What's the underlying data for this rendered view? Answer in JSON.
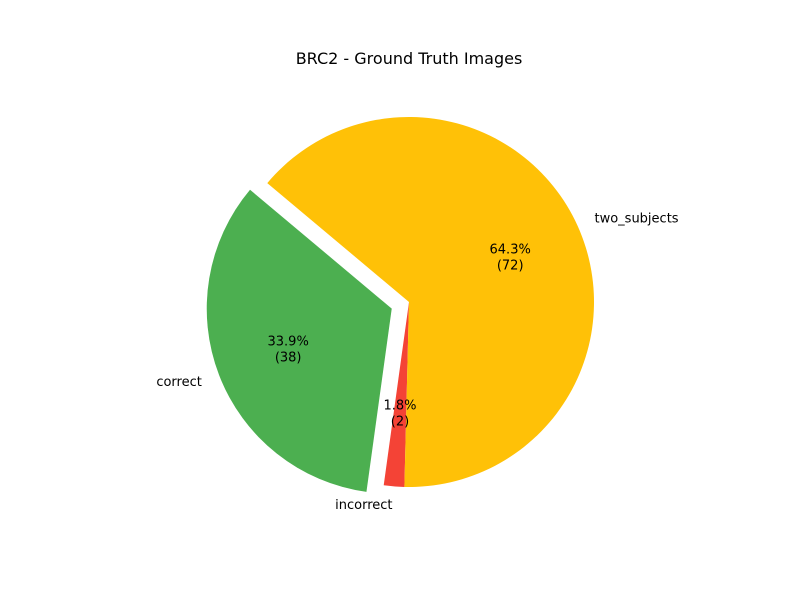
{
  "chart_data": {
    "type": "pie",
    "title": "BRC2 - Ground Truth Images",
    "slices": [
      {
        "label": "correct",
        "value": 38,
        "percent_text": "33.9%",
        "count_text": "(38)",
        "color": "#4caf50",
        "exploded": true
      },
      {
        "label": "incorrect",
        "value": 2,
        "percent_text": "1.8%",
        "count_text": "(2)",
        "color": "#f44336",
        "exploded": false
      },
      {
        "label": "two_subjects",
        "value": 72,
        "percent_text": "64.3%",
        "count_text": "(72)",
        "color": "#ffc107",
        "exploded": false
      }
    ],
    "start_angle_deg": 140,
    "direction": "counterclockwise"
  }
}
